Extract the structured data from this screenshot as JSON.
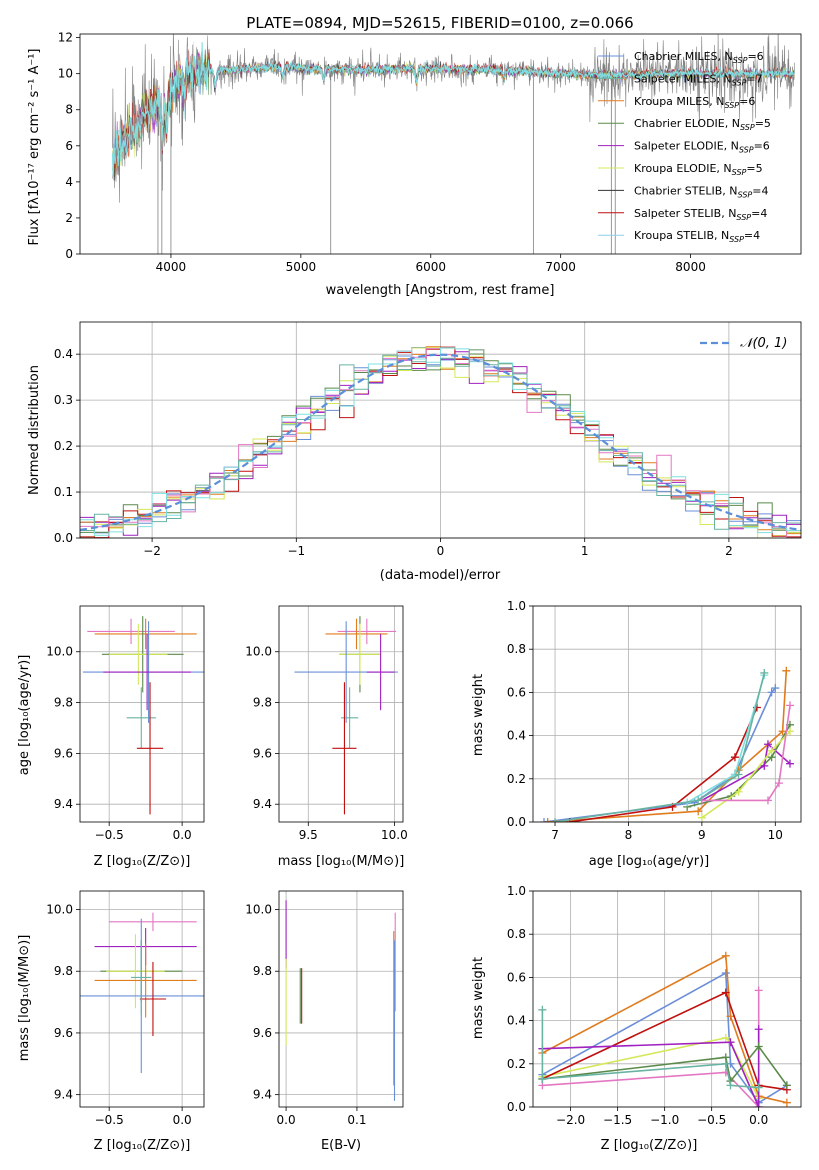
{
  "chart_data": [
    {
      "id": "spectrum",
      "type": "line",
      "title": "PLATE=0894, MJD=52615, FIBERID=0100, z=0.066",
      "xlabel": "wavelength [Angstrom, rest frame]",
      "ylabel": "Flux [fλ10⁻¹⁷ erg cm⁻² s⁻¹ A⁻¹]",
      "xlim": [
        3300,
        8850
      ],
      "ylim": [
        0,
        12.2
      ],
      "xticks": [
        4000,
        5000,
        6000,
        7000,
        8000
      ],
      "yticks": [
        0,
        2,
        4,
        6,
        8,
        10,
        12
      ],
      "legend_position": "right",
      "series": [
        {
          "name": "Chabrier MILES, N_SSP=6",
          "color": "#6a8fd8"
        },
        {
          "name": "Salpeter MILES, N_SSP=7",
          "color": "#69b3a2"
        },
        {
          "name": "Kroupa MILES, N_SSP=6",
          "color": "#e07b1e"
        },
        {
          "name": "Chabrier ELODIE, N_SSP=5",
          "color": "#5a8a4a"
        },
        {
          "name": "Salpeter ELODIE, N_SSP=6",
          "color": "#a020c0"
        },
        {
          "name": "Kroupa ELODIE, N_SSP=5",
          "color": "#d4e85a"
        },
        {
          "name": "Chabrier STELIB, N_SSP=4",
          "color": "#333333"
        },
        {
          "name": "Salpeter STELIB, N_SSP=4",
          "color": "#c01010"
        },
        {
          "name": "Kroupa STELIB, N_SSP=4",
          "color": "#8ed0e8"
        }
      ],
      "continuum": {
        "x": [
          3550,
          3600,
          3700,
          3800,
          3900,
          4000,
          4100,
          4300,
          4500,
          4800,
          5000,
          5500,
          6000,
          6500,
          7000,
          7400,
          7800,
          8200,
          8800
        ],
        "y": [
          5.0,
          6.0,
          6.8,
          7.6,
          8.3,
          9.0,
          10.0,
          10.2,
          10.2,
          10.4,
          10.3,
          10.2,
          10.3,
          10.2,
          10.0,
          9.9,
          10.0,
          10.0,
          10.0
        ]
      },
      "data_color": "#808080",
      "model_color": "#7fdfe0"
    },
    {
      "id": "residuals",
      "type": "bar",
      "xlabel": "(data-model)/error",
      "ylabel": "Normed distribution",
      "xlim": [
        -2.5,
        2.5
      ],
      "ylim": [
        0,
        0.47
      ],
      "xticks": [
        -2,
        -1,
        0,
        1,
        2
      ],
      "yticks": [
        0.0,
        0.1,
        0.2,
        0.3,
        0.4
      ],
      "reference": {
        "label": "𝒩(0, 1)",
        "color": "#5b8fd9"
      },
      "bin_width": 0.1,
      "colors": [
        "#6a8fd8",
        "#e07b1e",
        "#5a8a4a",
        "#a020c0",
        "#d4e85a",
        "#c01010",
        "#e377c2",
        "#7fdfe0",
        "#69b3a2"
      ]
    },
    {
      "id": "age_vs_Z",
      "type": "scatter",
      "xlabel": "Z [log₁₀(Z/Z⊙)]",
      "ylabel": "age  [log₁₀(age/yr)]",
      "xlim": [
        -0.7,
        0.15
      ],
      "ylim": [
        9.33,
        10.18
      ],
      "xticks": [
        -0.5,
        0.0
      ],
      "yticks": [
        9.4,
        9.6,
        9.8,
        10.0
      ],
      "points": [
        {
          "x": -0.35,
          "y": 10.08,
          "xerr": 0.3,
          "yerr": 0.05,
          "color": "#e377c2"
        },
        {
          "x": -0.25,
          "y": 10.07,
          "xerr": 0.35,
          "yerr": 0.06,
          "color": "#e07b1e"
        },
        {
          "x": -0.27,
          "y": 9.99,
          "xerr": 0.28,
          "yerr": 0.15,
          "color": "#5a8a4a"
        },
        {
          "x": -0.3,
          "y": 9.99,
          "xerr": 0.2,
          "yerr": 0.12,
          "color": "#d4e85a"
        },
        {
          "x": -0.23,
          "y": 9.92,
          "xerr": 0.45,
          "yerr": 0.2,
          "color": "#6a8fd8"
        },
        {
          "x": -0.24,
          "y": 9.92,
          "xerr": 0.3,
          "yerr": 0.15,
          "color": "#a020c0"
        },
        {
          "x": -0.28,
          "y": 9.74,
          "xerr": 0.1,
          "yerr": 0.12,
          "color": "#69b3a2"
        },
        {
          "x": -0.22,
          "y": 9.62,
          "xerr": 0.09,
          "yerr": 0.26,
          "color": "#c01010"
        }
      ]
    },
    {
      "id": "age_vs_mass",
      "type": "scatter",
      "xlabel": "mass [log₁₀(M/M⊙)]",
      "xlim": [
        9.33,
        10.05
      ],
      "ylim": [
        9.33,
        10.18
      ],
      "xticks": [
        9.5,
        10.0
      ],
      "yticks": [
        9.4,
        9.6,
        9.8,
        10.0
      ],
      "points": [
        {
          "x": 9.84,
          "y": 10.08,
          "xerr": 0.17,
          "yerr": 0.05,
          "color": "#e377c2"
        },
        {
          "x": 9.78,
          "y": 10.07,
          "xerr": 0.18,
          "yerr": 0.06,
          "color": "#e07b1e"
        },
        {
          "x": 9.8,
          "y": 9.99,
          "xerr": 0.12,
          "yerr": 0.15,
          "color": "#5a8a4a"
        },
        {
          "x": 9.8,
          "y": 9.99,
          "xerr": 0.12,
          "yerr": 0.12,
          "color": "#d4e85a"
        },
        {
          "x": 9.72,
          "y": 9.92,
          "xerr": 0.3,
          "yerr": 0.2,
          "color": "#6a8fd8"
        },
        {
          "x": 9.92,
          "y": 9.92,
          "xerr": 0.08,
          "yerr": 0.15,
          "color": "#a020c0"
        },
        {
          "x": 9.74,
          "y": 9.74,
          "xerr": 0.05,
          "yerr": 0.12,
          "color": "#69b3a2"
        },
        {
          "x": 9.71,
          "y": 9.62,
          "xerr": 0.07,
          "yerr": 0.26,
          "color": "#c01010"
        }
      ]
    },
    {
      "id": "weight_vs_age",
      "type": "line",
      "xlabel": "age  [log₁₀(age/yr)]",
      "ylabel": "mass weight",
      "xlim": [
        6.7,
        10.35
      ],
      "ylim": [
        0,
        1.0
      ],
      "xticks": [
        7,
        8,
        9,
        10
      ],
      "yticks": [
        0.0,
        0.2,
        0.4,
        0.6,
        0.8,
        1.0
      ],
      "series": [
        {
          "color": "#6a8fd8",
          "x": [
            6.85,
            8.9,
            9.45,
            9.95,
            10.0
          ],
          "y": [
            0.0,
            0.09,
            0.22,
            0.6,
            0.62
          ]
        },
        {
          "color": "#e07b1e",
          "x": [
            6.9,
            8.95,
            9.5,
            10.1,
            10.15
          ],
          "y": [
            0.0,
            0.05,
            0.24,
            0.42,
            0.7
          ]
        },
        {
          "color": "#5a8a4a",
          "x": [
            8.8,
            9.4,
            9.95,
            10.2
          ],
          "y": [
            0.07,
            0.12,
            0.3,
            0.45
          ]
        },
        {
          "color": "#a020c0",
          "x": [
            9.0,
            9.85,
            9.9,
            10.2
          ],
          "y": [
            0.1,
            0.26,
            0.36,
            0.27
          ]
        },
        {
          "color": "#d4e85a",
          "x": [
            9.0,
            9.5,
            9.95,
            10.2
          ],
          "y": [
            0.02,
            0.14,
            0.33,
            0.42
          ]
        },
        {
          "color": "#c01010",
          "x": [
            7.2,
            8.6,
            9.45,
            9.75
          ],
          "y": [
            0.0,
            0.07,
            0.3,
            0.53
          ]
        },
        {
          "color": "#e377c2",
          "x": [
            9.0,
            9.9,
            10.05,
            10.2
          ],
          "y": [
            0.1,
            0.1,
            0.18,
            0.54
          ]
        },
        {
          "color": "#7fdfe0",
          "x": [
            8.8,
            9.45,
            9.85
          ],
          "y": [
            0.09,
            0.22,
            0.68
          ]
        },
        {
          "color": "#69b3a2",
          "x": [
            7.0,
            8.95,
            9.5,
            9.85
          ],
          "y": [
            0.0,
            0.1,
            0.22,
            0.69
          ]
        }
      ]
    },
    {
      "id": "mass_vs_Z",
      "type": "scatter",
      "xlabel": "Z [log₁₀(Z/Z⊙)]",
      "ylabel": "mass [log₁₀(M/M⊙)]",
      "xlim": [
        -0.7,
        0.15
      ],
      "ylim": [
        9.36,
        10.06
      ],
      "xticks": [
        -0.5,
        0.0
      ],
      "yticks": [
        9.4,
        9.6,
        9.8,
        10.0
      ],
      "points": [
        {
          "x": -0.2,
          "y": 9.96,
          "xerr": 0.3,
          "yerr": 0.03,
          "color": "#e377c2"
        },
        {
          "x": -0.25,
          "y": 9.88,
          "xerr": 0.35,
          "yerr": 0.06,
          "color": "#a020c0"
        },
        {
          "x": -0.28,
          "y": 9.8,
          "xerr": 0.28,
          "yerr": 0.1,
          "color": "#5a8a4a"
        },
        {
          "x": -0.32,
          "y": 9.8,
          "xerr": 0.2,
          "yerr": 0.12,
          "color": "#d4e85a"
        },
        {
          "x": -0.25,
          "y": 9.77,
          "xerr": 0.35,
          "yerr": 0.12,
          "color": "#e07b1e"
        },
        {
          "x": -0.28,
          "y": 9.72,
          "xerr": 0.45,
          "yerr": 0.25,
          "color": "#6a8fd8"
        },
        {
          "x": -0.2,
          "y": 9.71,
          "xerr": 0.09,
          "yerr": 0.12,
          "color": "#c01010"
        },
        {
          "x": -0.28,
          "y": 9.78,
          "xerr": 0.07,
          "yerr": 0.12,
          "color": "#69b3a2"
        }
      ]
    },
    {
      "id": "mass_vs_EBV",
      "type": "scatter",
      "xlabel": "E(B-V)",
      "xlim": [
        -0.01,
        0.165
      ],
      "ylim": [
        9.36,
        10.06
      ],
      "xticks": [
        0.0,
        0.1
      ],
      "yticks": [
        9.4,
        9.6,
        9.8,
        10.0
      ],
      "points": [
        {
          "x": 0.0,
          "y": 9.92,
          "xerr": 0.0,
          "yerr": 0.11,
          "color": "#a020c0"
        },
        {
          "x": 0.0,
          "y": 9.7,
          "xerr": 0.0,
          "yerr": 0.14,
          "color": "#d4e85a"
        },
        {
          "x": 0.02,
          "y": 9.72,
          "xerr": 0.0,
          "yerr": 0.09,
          "color": "#5a8a4a"
        },
        {
          "x": 0.022,
          "y": 9.72,
          "xerr": 0.0,
          "yerr": 0.09,
          "color": "#c01010"
        },
        {
          "x": 0.154,
          "y": 9.83,
          "xerr": 0.0,
          "yerr": 0.16,
          "color": "#e377c2"
        },
        {
          "x": 0.152,
          "y": 9.68,
          "xerr": 0.0,
          "yerr": 0.25,
          "color": "#e07b1e"
        },
        {
          "x": 0.153,
          "y": 9.64,
          "xerr": 0.0,
          "yerr": 0.26,
          "color": "#6a8fd8"
        }
      ]
    },
    {
      "id": "weight_vs_Z",
      "type": "line",
      "xlabel": "Z [log₁₀(Z/Z⊙)]",
      "ylabel": "mass weight",
      "xlim": [
        -2.4,
        0.45
      ],
      "ylim": [
        0,
        1.0
      ],
      "xticks": [
        -2.0,
        -1.5,
        -1.0,
        -0.5,
        0.0
      ],
      "yticks": [
        0.0,
        0.2,
        0.4,
        0.6,
        0.8,
        1.0
      ],
      "series": [
        {
          "color": "#6a8fd8",
          "x": [
            -2.3,
            -0.35,
            -0.3,
            0.0,
            0.3
          ],
          "y": [
            0.15,
            0.62,
            0.2,
            0.02,
            0.1
          ]
        },
        {
          "color": "#e07b1e",
          "x": [
            -2.3,
            -0.35,
            -0.3,
            0.0,
            0.3
          ],
          "y": [
            0.25,
            0.7,
            0.42,
            0.05,
            0.02
          ]
        },
        {
          "color": "#d4e85a",
          "x": [
            -2.3,
            -0.35,
            -0.3,
            0.0
          ],
          "y": [
            0.14,
            0.32,
            0.3,
            0.04
          ]
        },
        {
          "color": "#e377c2",
          "x": [
            -2.3,
            -0.35,
            0.0,
            0.0
          ],
          "y": [
            0.1,
            0.16,
            0.0,
            0.54
          ]
        },
        {
          "color": "#c01010",
          "x": [
            -2.3,
            -0.35,
            0.0,
            0.3
          ],
          "y": [
            0.13,
            0.53,
            0.1,
            0.08
          ]
        },
        {
          "color": "#a020c0",
          "x": [
            -2.3,
            -0.3,
            0.0,
            0.0
          ],
          "y": [
            0.27,
            0.3,
            0.0,
            0.36
          ]
        },
        {
          "color": "#5a8a4a",
          "x": [
            -2.3,
            -0.35,
            -0.3,
            0.0,
            0.3
          ],
          "y": [
            0.13,
            0.23,
            0.12,
            0.28,
            0.1
          ]
        },
        {
          "color": "#69b3a2",
          "x": [
            -2.3,
            -2.3,
            -0.35,
            -0.3,
            0.0
          ],
          "y": [
            0.45,
            0.13,
            0.2,
            0.1,
            0.09
          ]
        }
      ]
    }
  ]
}
